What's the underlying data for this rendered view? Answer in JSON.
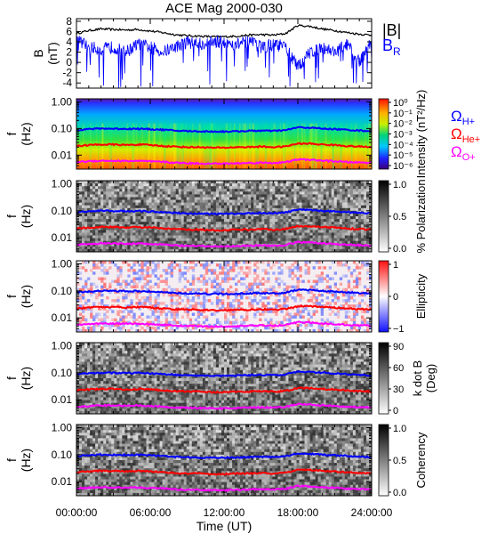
{
  "title": "ACE Mag 2000-030",
  "xaxis": {
    "label": "Time (UT)",
    "ticks": [
      "00:00:00",
      "06:00:00",
      "12:00:00",
      "18:00:00",
      "24:00:00"
    ],
    "range_hours": [
      0,
      24
    ]
  },
  "colors": {
    "btotal": "#000000",
    "br": "#0000ff",
    "oh": "#0000ff",
    "ohe": "#ff0000",
    "oo": "#ff00ff"
  },
  "legend_b": {
    "total": "|B|",
    "radial": "B",
    "radial_sub": "R"
  },
  "legend_gyro": [
    {
      "sym": "Ω",
      "sub": "H+",
      "color": "#0000ff"
    },
    {
      "sym": "Ω",
      "sub": "He+",
      "color": "#ff0000"
    },
    {
      "sym": "Ω",
      "sub": "O+",
      "color": "#ff00ff"
    }
  ],
  "panels": [
    {
      "id": "b",
      "ylabel": "B",
      "yunit": "(nT)",
      "yticks": [
        "8",
        "6",
        "4",
        "2",
        "0",
        "-2",
        "-4"
      ],
      "ylim": [
        -5,
        8.5
      ]
    },
    {
      "id": "psd",
      "ylabel": "f",
      "yunit": "(Hz)",
      "yticks": [
        "1.00",
        "0.10",
        "0.01"
      ],
      "colormap": "rainbow",
      "cbar_label": "Intensity (nT²/Hz)",
      "cbar_ticks": [
        "10⁰",
        "10⁻¹",
        "10⁻²",
        "10⁻³",
        "10⁻⁴",
        "10⁻⁵",
        "10⁻⁶"
      ]
    },
    {
      "id": "pol",
      "ylabel": "f",
      "yunit": "(Hz)",
      "yticks": [
        "1.00",
        "0.10",
        "0.01"
      ],
      "colormap": "grey",
      "cbar_label": "% Polarization",
      "cbar_ticks": [
        "1.0",
        "0.5",
        "0.0"
      ]
    },
    {
      "id": "ell",
      "ylabel": "f",
      "yunit": "(Hz)",
      "yticks": [
        "1.00",
        "0.10",
        "0.01"
      ],
      "colormap": "bluewhitered",
      "cbar_label": "Ellipticity",
      "cbar_ticks": [
        "1",
        "0",
        "−1"
      ]
    },
    {
      "id": "kdb",
      "ylabel": "f",
      "yunit": "(Hz)",
      "yticks": [
        "1.00",
        "0.10",
        "0.01"
      ],
      "colormap": "grey",
      "cbar_label": "k dot B",
      "cbar_unit": "(Deg)",
      "cbar_ticks": [
        "90",
        "60",
        "30",
        "0"
      ]
    },
    {
      "id": "coh",
      "ylabel": "f",
      "yunit": "(Hz)",
      "yticks": [
        "1.00",
        "0.10",
        "0.01"
      ],
      "colormap": "grey",
      "cbar_label": "Coherency",
      "cbar_ticks": [
        "1.0",
        "0.5",
        "0.0"
      ]
    }
  ],
  "chart_data": [
    {
      "type": "line",
      "panel": "b",
      "x_hours": [
        0,
        1,
        2,
        3,
        4,
        5,
        6,
        7,
        8,
        9,
        10,
        11,
        12,
        13,
        14,
        15,
        16,
        17,
        18,
        19,
        20,
        21,
        22,
        23,
        24
      ],
      "ylim": [
        -5,
        8.5
      ],
      "series": [
        {
          "name": "|B|",
          "values": [
            5.6,
            6.2,
            6.5,
            6.4,
            6.3,
            6.4,
            6.1,
            5.8,
            5.4,
            5.2,
            5.1,
            5.0,
            5.0,
            5.1,
            5.3,
            5.4,
            5.3,
            5.6,
            7.2,
            7.0,
            6.5,
            6.2,
            5.8,
            5.5,
            5.3
          ]
        },
        {
          "name": "BR",
          "values": [
            4.5,
            3.0,
            2.5,
            3.0,
            2.0,
            3.5,
            3.0,
            2.0,
            3.0,
            4.0,
            3.5,
            4.0,
            4.0,
            3.5,
            4.0,
            3.0,
            3.5,
            3.0,
            -1.0,
            2.0,
            3.0,
            2.0,
            3.5,
            0.0,
            4.0
          ]
        }
      ]
    },
    {
      "type": "line",
      "panel": "gyrofrequency overlays (all spectral panels)",
      "x_hours": [
        0,
        1,
        2,
        3,
        4,
        5,
        6,
        7,
        8,
        9,
        10,
        11,
        12,
        13,
        14,
        15,
        16,
        17,
        18,
        19,
        20,
        21,
        22,
        23,
        24
      ],
      "yscale": "log",
      "ylim_hz": [
        0.003,
        1.3
      ],
      "series": [
        {
          "name": "ΩH+",
          "values": [
            0.088,
            0.095,
            0.1,
            0.098,
            0.097,
            0.098,
            0.094,
            0.09,
            0.083,
            0.08,
            0.078,
            0.077,
            0.077,
            0.078,
            0.081,
            0.083,
            0.081,
            0.086,
            0.11,
            0.107,
            0.099,
            0.095,
            0.089,
            0.084,
            0.081
          ]
        },
        {
          "name": "ΩHe+",
          "values": [
            0.022,
            0.024,
            0.025,
            0.025,
            0.024,
            0.025,
            0.024,
            0.022,
            0.021,
            0.02,
            0.02,
            0.019,
            0.019,
            0.02,
            0.02,
            0.021,
            0.02,
            0.021,
            0.027,
            0.027,
            0.025,
            0.024,
            0.022,
            0.021,
            0.02
          ]
        },
        {
          "name": "ΩO+",
          "values": [
            0.0055,
            0.0059,
            0.0062,
            0.0061,
            0.006,
            0.0061,
            0.0058,
            0.0056,
            0.0052,
            0.005,
            0.0049,
            0.0048,
            0.0048,
            0.0049,
            0.0051,
            0.0052,
            0.0051,
            0.0054,
            0.0069,
            0.0067,
            0.0062,
            0.0059,
            0.0055,
            0.0053,
            0.0051
          ]
        }
      ]
    }
  ]
}
